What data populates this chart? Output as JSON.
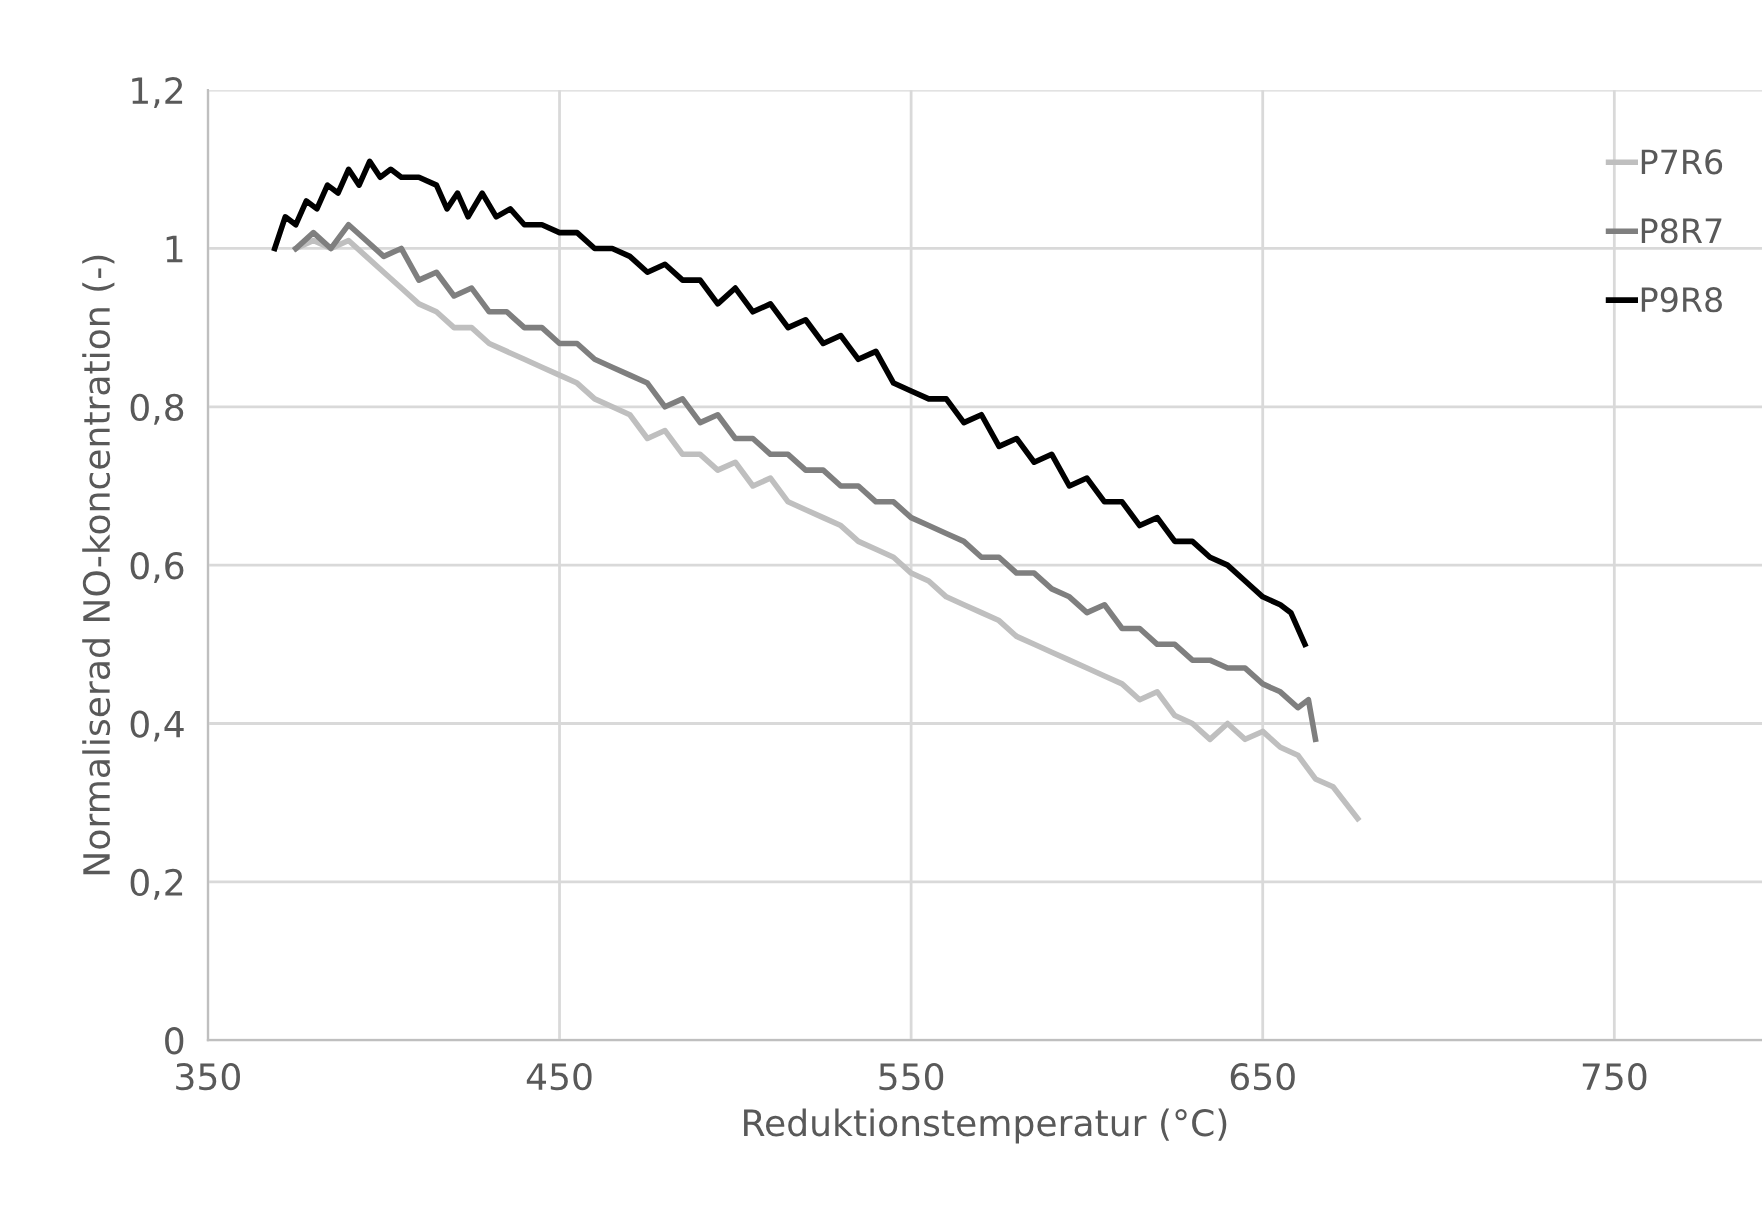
{
  "chart_data": {
    "type": "line",
    "xlabel": "Reduktionstemperatur (°C)",
    "ylabel": "Normaliserad NO-koncentration (-)",
    "xlim": [
      350,
      792
    ],
    "xticks": [
      350,
      450,
      550,
      650,
      750
    ],
    "ylim": [
      0,
      1.2
    ],
    "yticks": [
      0,
      {
        "value": 0.2,
        "label": "0,2"
      },
      {
        "value": 0.4,
        "label": "0,4"
      },
      {
        "value": 0.6,
        "label": "0,6"
      },
      {
        "value": 0.8,
        "label": "0,8"
      },
      1,
      {
        "value": 1.2,
        "label": "1,2"
      }
    ],
    "grid": true,
    "legend": "top right",
    "marker": "none",
    "line_style": "solid",
    "series": [
      {
        "name": "P7R6",
        "color": "#bfbfbf",
        "x": [
          375,
          380,
          385,
          390,
          395,
          400,
          405,
          410,
          415,
          420,
          425,
          430,
          435,
          440,
          445,
          450,
          455,
          460,
          465,
          470,
          475,
          480,
          485,
          490,
          495,
          500,
          505,
          510,
          515,
          520,
          525,
          530,
          535,
          540,
          545,
          550,
          555,
          560,
          565,
          570,
          575,
          580,
          585,
          590,
          595,
          600,
          605,
          610,
          615,
          620,
          625,
          630,
          635,
          640,
          645,
          650,
          655,
          660,
          665,
          670,
          677
        ],
        "values": [
          1.0,
          1.01,
          1.0,
          1.01,
          0.99,
          0.97,
          0.95,
          0.93,
          0.92,
          0.9,
          0.9,
          0.88,
          0.87,
          0.86,
          0.85,
          0.84,
          0.83,
          0.81,
          0.8,
          0.79,
          0.76,
          0.77,
          0.74,
          0.74,
          0.72,
          0.73,
          0.7,
          0.71,
          0.68,
          0.67,
          0.66,
          0.65,
          0.63,
          0.62,
          0.61,
          0.59,
          0.58,
          0.56,
          0.55,
          0.54,
          0.53,
          0.51,
          0.5,
          0.49,
          0.48,
          0.47,
          0.46,
          0.45,
          0.43,
          0.44,
          0.41,
          0.4,
          0.38,
          0.4,
          0.38,
          0.39,
          0.37,
          0.36,
          0.33,
          0.32,
          0.28
        ]
      },
      {
        "name": "P8R7",
        "color": "#7f7f7f",
        "x": [
          375,
          380,
          385,
          390,
          395,
          400,
          405,
          410,
          415,
          420,
          425,
          430,
          435,
          440,
          445,
          450,
          455,
          460,
          465,
          470,
          475,
          480,
          485,
          490,
          495,
          500,
          505,
          510,
          515,
          520,
          525,
          530,
          535,
          540,
          545,
          550,
          555,
          560,
          565,
          570,
          575,
          580,
          585,
          590,
          595,
          600,
          605,
          610,
          615,
          620,
          625,
          630,
          635,
          640,
          645,
          650,
          655,
          660,
          663,
          665
        ],
        "values": [
          1.0,
          1.02,
          1.0,
          1.03,
          1.01,
          0.99,
          1.0,
          0.96,
          0.97,
          0.94,
          0.95,
          0.92,
          0.92,
          0.9,
          0.9,
          0.88,
          0.88,
          0.86,
          0.85,
          0.84,
          0.83,
          0.8,
          0.81,
          0.78,
          0.79,
          0.76,
          0.76,
          0.74,
          0.74,
          0.72,
          0.72,
          0.7,
          0.7,
          0.68,
          0.68,
          0.66,
          0.65,
          0.64,
          0.63,
          0.61,
          0.61,
          0.59,
          0.59,
          0.57,
          0.56,
          0.54,
          0.55,
          0.52,
          0.52,
          0.5,
          0.5,
          0.48,
          0.48,
          0.47,
          0.47,
          0.45,
          0.44,
          0.42,
          0.43,
          0.38
        ]
      },
      {
        "name": "P9R8",
        "color": "#000000",
        "x": [
          369,
          372,
          375,
          378,
          381,
          384,
          387,
          390,
          393,
          396,
          399,
          402,
          405,
          410,
          415,
          418,
          421,
          424,
          428,
          432,
          436,
          440,
          445,
          450,
          455,
          460,
          465,
          470,
          475,
          480,
          485,
          490,
          495,
          500,
          505,
          510,
          515,
          520,
          525,
          530,
          535,
          540,
          545,
          550,
          555,
          560,
          565,
          570,
          575,
          580,
          585,
          590,
          595,
          600,
          605,
          610,
          615,
          620,
          625,
          630,
          635,
          640,
          645,
          650,
          655,
          658,
          662
        ],
        "values": [
          1.0,
          1.04,
          1.03,
          1.06,
          1.05,
          1.08,
          1.07,
          1.1,
          1.08,
          1.11,
          1.09,
          1.1,
          1.09,
          1.09,
          1.08,
          1.05,
          1.07,
          1.04,
          1.07,
          1.04,
          1.05,
          1.03,
          1.03,
          1.02,
          1.02,
          1.0,
          1.0,
          0.99,
          0.97,
          0.98,
          0.96,
          0.96,
          0.93,
          0.95,
          0.92,
          0.93,
          0.9,
          0.91,
          0.88,
          0.89,
          0.86,
          0.87,
          0.83,
          0.82,
          0.81,
          0.81,
          0.78,
          0.79,
          0.75,
          0.76,
          0.73,
          0.74,
          0.7,
          0.71,
          0.68,
          0.68,
          0.65,
          0.66,
          0.63,
          0.63,
          0.61,
          0.6,
          0.58,
          0.56,
          0.55,
          0.54,
          0.5
        ]
      }
    ]
  }
}
